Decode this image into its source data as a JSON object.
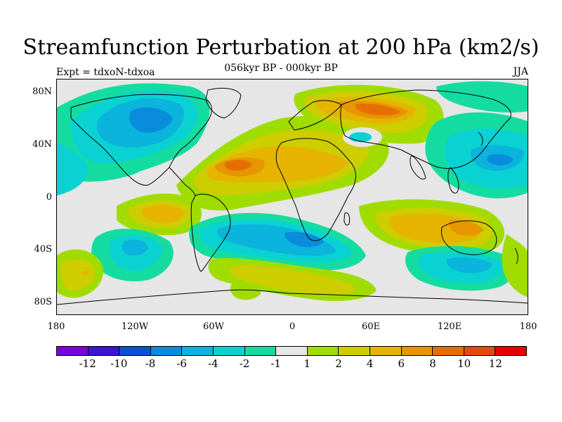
{
  "title": "Streamfunction Perturbation at 200 hPa (km2/s)",
  "subtitle": "056kyr BP - 000kyr BP",
  "left_label": "Expt = tdxoN-tdxoa",
  "right_label": "JJA",
  "axes": {
    "y_ticks": [
      "80N",
      "40N",
      "0",
      "40S",
      "80S"
    ],
    "x_ticks": [
      "180",
      "120W",
      "60W",
      "0",
      "60E",
      "120E",
      "180"
    ]
  },
  "colorbar": {
    "colors": [
      "#7a00dc",
      "#3c14d2",
      "#0a50d2",
      "#0a8cdc",
      "#0ab4dc",
      "#0ad2d2",
      "#14dca0",
      "#e6e6e6",
      "#a0dc00",
      "#cdcd00",
      "#e6b400",
      "#e69600",
      "#e66e00",
      "#e64614",
      "#e60000"
    ],
    "labels": [
      "-12",
      "-10",
      "-8",
      "-6",
      "-4",
      "-2",
      "-1",
      "1",
      "2",
      "4",
      "6",
      "8",
      "10",
      "12"
    ]
  },
  "palette": {
    "n6": "#0ab4dc",
    "n4": "#0ad2d2",
    "n2": "#14dca0",
    "n8": "#0a8cdc",
    "p2": "#a0dc00",
    "p4": "#cdcd00",
    "p6": "#e6b400",
    "p8": "#e69600",
    "p10": "#e66e00",
    "neutral": "#e6e6e6"
  }
}
